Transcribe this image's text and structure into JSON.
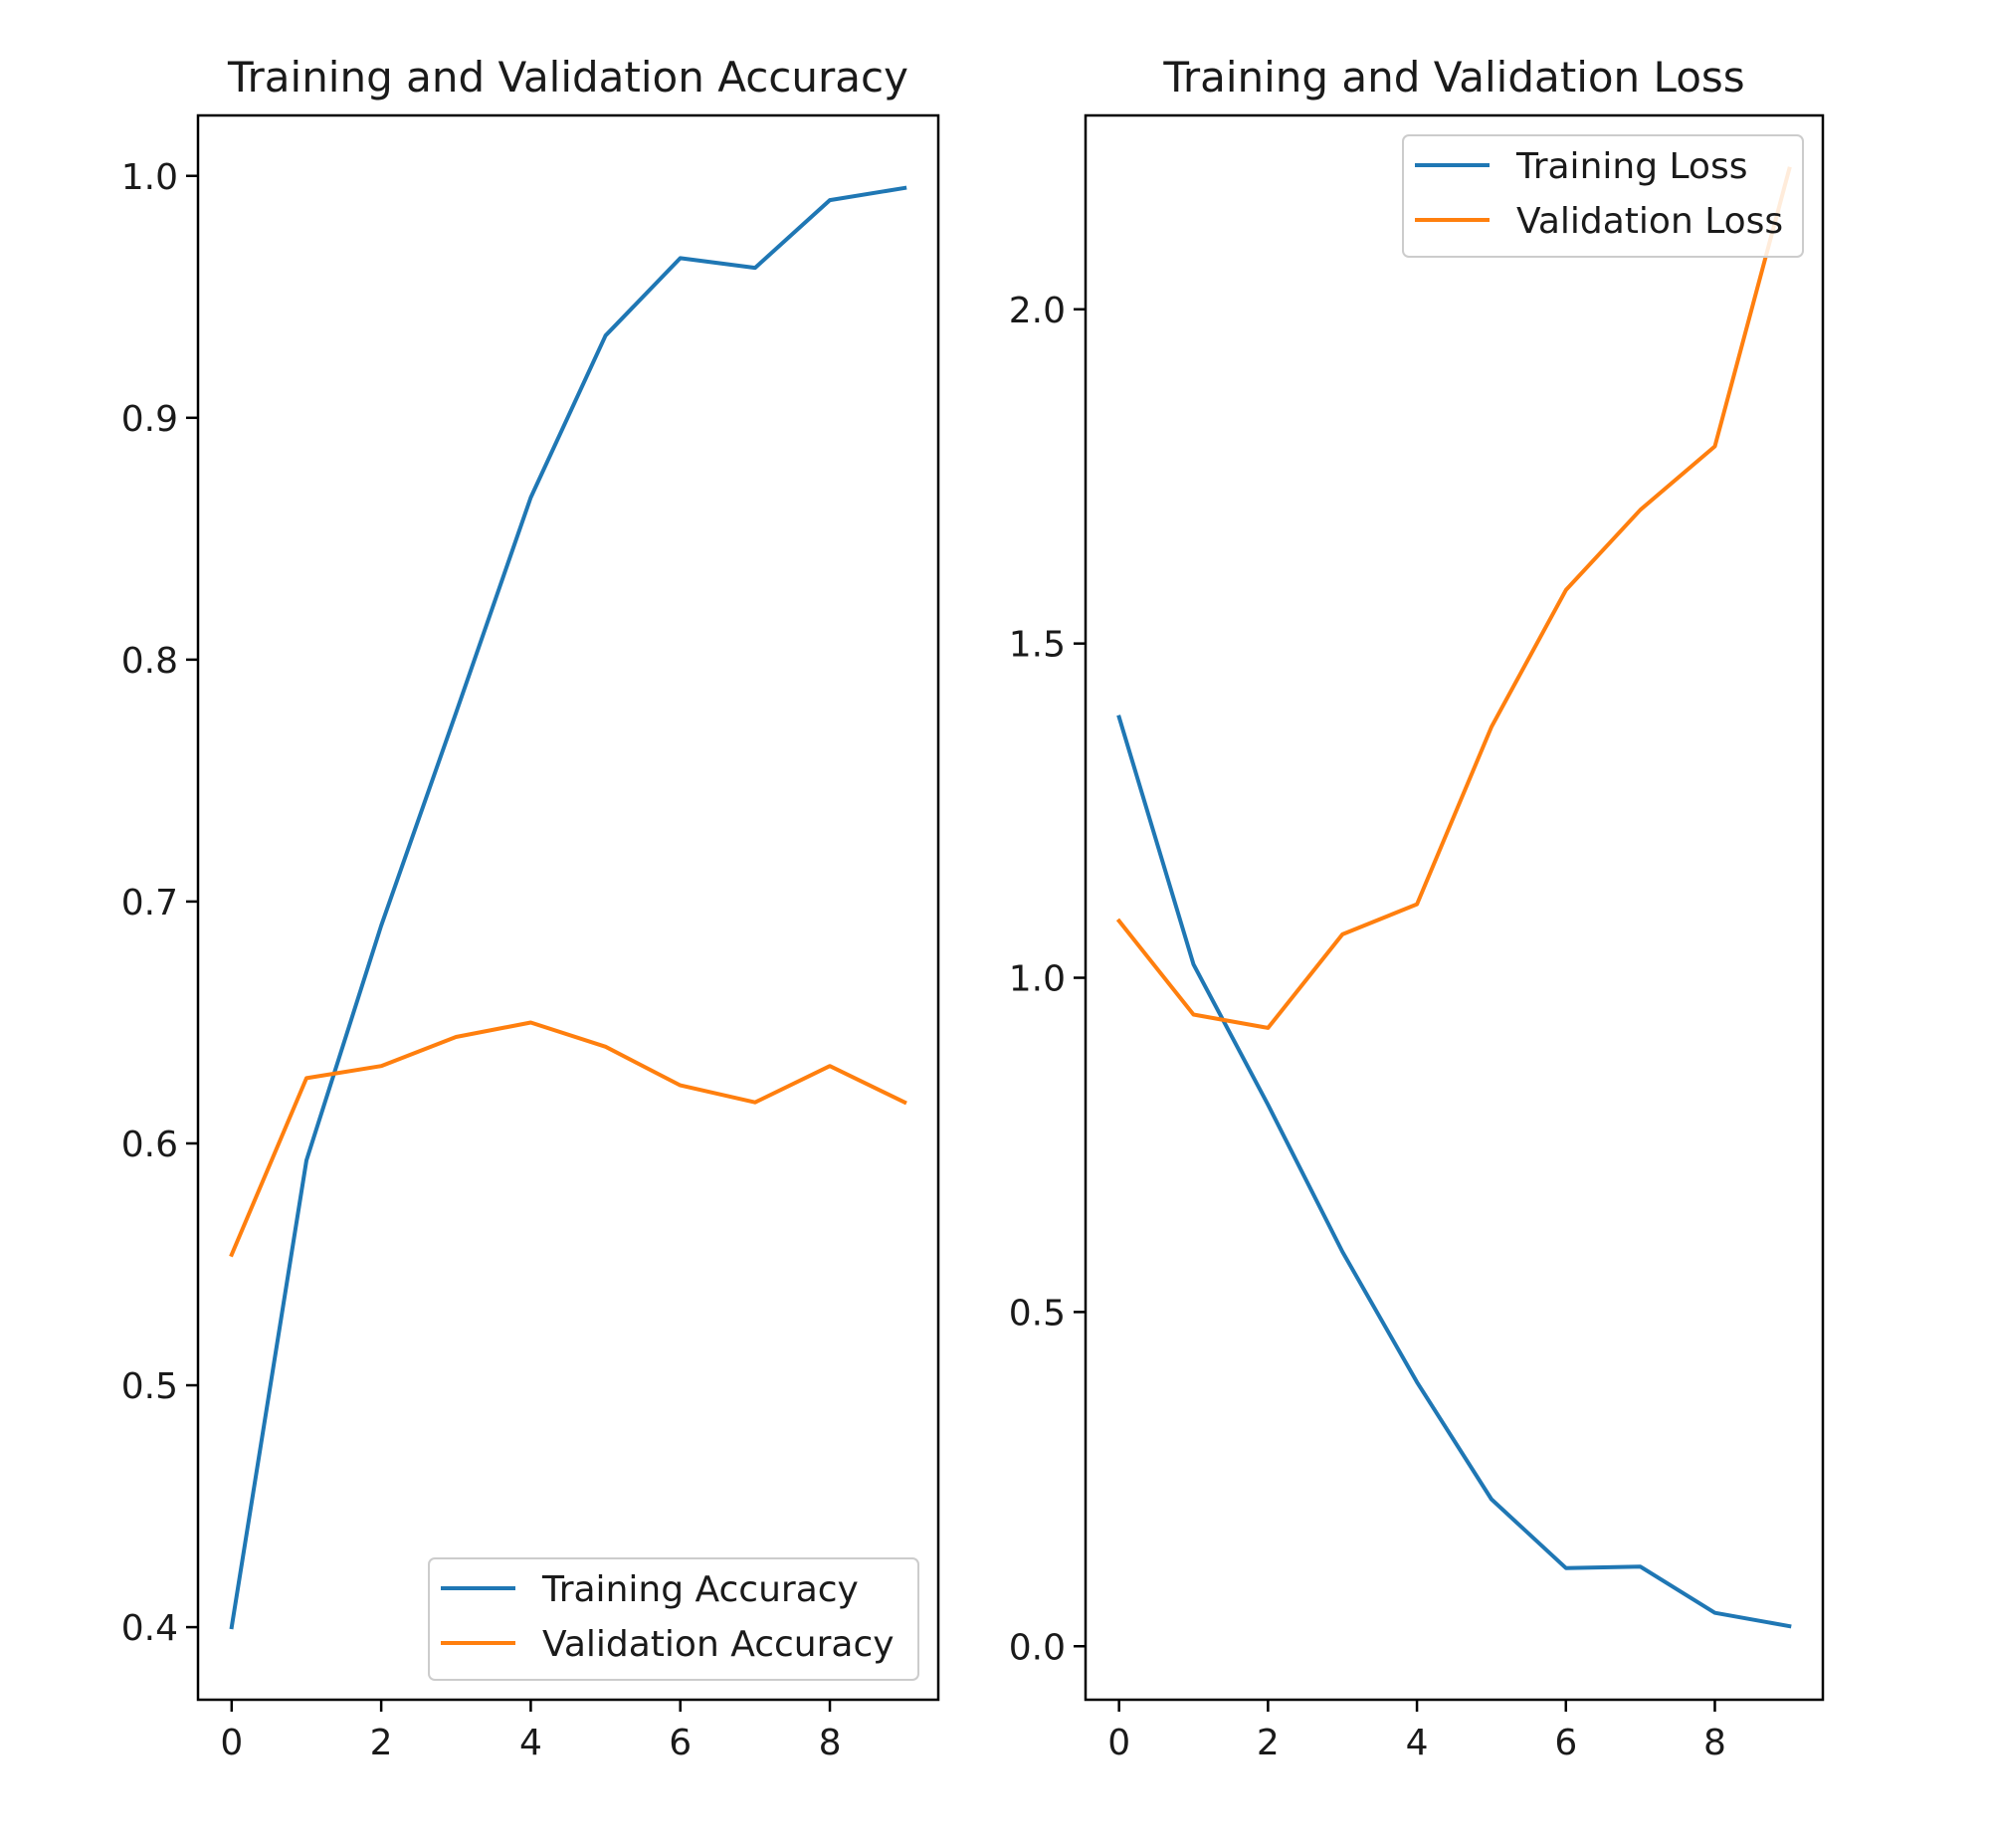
{
  "figure": {
    "background": "#ffffff"
  },
  "chart_data": [
    {
      "type": "line",
      "title": "Training and Validation Accuracy",
      "xlabel": "",
      "ylabel": "",
      "xlim": [
        -0.45,
        9.45
      ],
      "ylim": [
        0.37,
        1.025
      ],
      "xticks": [
        0,
        2,
        4,
        6,
        8
      ],
      "xtick_labels": [
        "0",
        "2",
        "4",
        "6",
        "8"
      ],
      "yticks": [
        0.4,
        0.5,
        0.6,
        0.7,
        0.8,
        0.9,
        1.0
      ],
      "ytick_labels": [
        "0.4",
        "0.5",
        "0.6",
        "0.7",
        "0.8",
        "0.9",
        "1.0"
      ],
      "grid": false,
      "legend_position": "lower right",
      "x": [
        0,
        1,
        2,
        3,
        4,
        5,
        6,
        7,
        8,
        9
      ],
      "series": [
        {
          "name": "Training Accuracy",
          "color": "#1f77b4",
          "values": [
            0.4,
            0.593,
            0.69,
            0.778,
            0.867,
            0.934,
            0.966,
            0.962,
            0.99,
            0.995
          ]
        },
        {
          "name": "Validation Accuracy",
          "color": "#ff7f0e",
          "values": [
            0.554,
            0.627,
            0.632,
            0.644,
            0.65,
            0.64,
            0.624,
            0.617,
            0.632,
            0.617
          ]
        }
      ]
    },
    {
      "type": "line",
      "title": "Training and Validation Loss",
      "xlabel": "",
      "ylabel": "",
      "xlim": [
        -0.45,
        9.45
      ],
      "ylim": [
        -0.08,
        2.29
      ],
      "xticks": [
        0,
        2,
        4,
        6,
        8
      ],
      "xtick_labels": [
        "0",
        "2",
        "4",
        "6",
        "8"
      ],
      "yticks": [
        0.0,
        0.5,
        1.0,
        1.5,
        2.0
      ],
      "ytick_labels": [
        "0.0",
        "0.5",
        "1.0",
        "1.5",
        "2.0"
      ],
      "grid": false,
      "legend_position": "upper right",
      "x": [
        0,
        1,
        2,
        3,
        4,
        5,
        6,
        7,
        8,
        9
      ],
      "series": [
        {
          "name": "Training Loss",
          "color": "#1f77b4",
          "values": [
            1.39,
            1.02,
            0.81,
            0.59,
            0.395,
            0.22,
            0.117,
            0.119,
            0.05,
            0.03
          ]
        },
        {
          "name": "Validation Loss",
          "color": "#ff7f0e",
          "values": [
            1.085,
            0.945,
            0.925,
            1.065,
            1.11,
            1.375,
            1.58,
            1.7,
            1.795,
            2.21
          ]
        }
      ]
    }
  ]
}
